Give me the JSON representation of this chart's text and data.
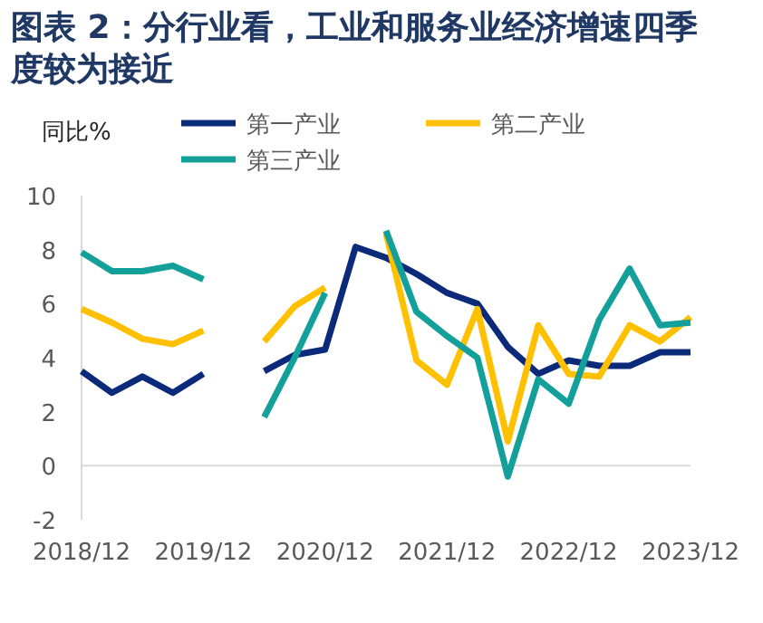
{
  "chart_data": {
    "type": "line",
    "title": "图表 2：分行业看，工业和服务业经济增速四季度较为接近",
    "ylabel": "同比%",
    "categories": [
      "2018/12",
      null,
      null,
      null,
      "2019/12",
      null,
      null,
      null,
      "2020/12",
      null,
      null,
      null,
      "2021/12",
      null,
      null,
      null,
      "2022/12",
      null,
      null,
      null,
      "2023/12"
    ],
    "ylim": [
      -2,
      10
    ],
    "yticks": [
      -2,
      0,
      2,
      4,
      6,
      8,
      10
    ],
    "legend": "top",
    "ref_lines": [
      {
        "axis": "y",
        "value": 0,
        "color": "#d9d9d9"
      }
    ],
    "series": [
      {
        "name": "第一产业",
        "color": "#0b2a7a",
        "values": [
          3.5,
          2.7,
          3.3,
          2.7,
          3.4,
          null,
          3.5,
          4.1,
          4.3,
          8.1,
          7.7,
          7.1,
          6.4,
          6.0,
          4.4,
          3.4,
          3.9,
          3.7,
          3.7,
          4.2,
          4.2
        ]
      },
      {
        "name": "第二产业",
        "color": "#ffc000",
        "values": [
          5.8,
          5.3,
          4.7,
          4.5,
          5.0,
          null,
          4.6,
          5.9,
          6.6,
          null,
          8.6,
          3.9,
          3.0,
          5.8,
          0.9,
          5.2,
          3.4,
          3.3,
          5.2,
          4.6,
          5.5
        ]
      },
      {
        "name": "第三产业",
        "color": "#13a09a",
        "values": [
          7.9,
          7.2,
          7.2,
          7.4,
          6.9,
          null,
          1.8,
          4.0,
          6.4,
          null,
          8.7,
          5.7,
          4.8,
          4.0,
          -0.4,
          3.2,
          2.3,
          5.4,
          7.3,
          5.2,
          5.3
        ]
      }
    ]
  }
}
